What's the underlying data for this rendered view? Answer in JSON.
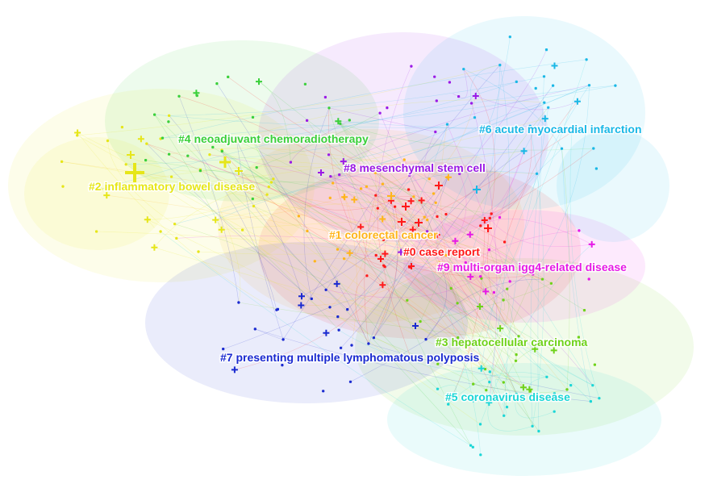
{
  "clusters": [
    {
      "id": "0",
      "label": "#0 case report",
      "color": "#ff1a1a"
    },
    {
      "id": "1",
      "label": "#1 colorectal cancer",
      "color": "#ffb51a"
    },
    {
      "id": "2",
      "label": "#2 inflammatory bowel disease",
      "color": "#e6e619"
    },
    {
      "id": "3",
      "label": "#3 hepatocellular carcinoma",
      "color": "#6fd21a"
    },
    {
      "id": "4",
      "label": "#4 neoadjuvant chemoradiotherapy",
      "color": "#3ad03a"
    },
    {
      "id": "5",
      "label": "#5 coronavirus disease",
      "color": "#1ad6d6"
    },
    {
      "id": "6",
      "label": "#6 acute myocardial infarction",
      "color": "#1ab8e6"
    },
    {
      "id": "7",
      "label": "#7 presenting multiple lymphomatous polyposis",
      "color": "#1a2ad0"
    },
    {
      "id": "8",
      "label": "#8 mesenchymal stem cell",
      "color": "#9b1ae6"
    },
    {
      "id": "9",
      "label": "#9 multi-organ igg4-related disease",
      "color": "#e61ae6"
    }
  ]
}
